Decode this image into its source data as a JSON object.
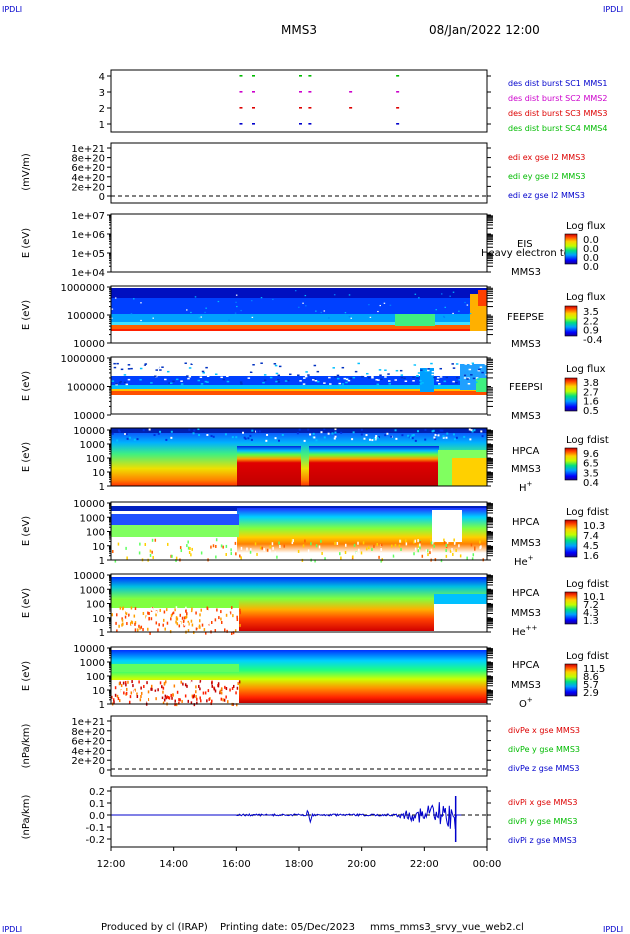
{
  "header": {
    "corner_tl": "IPDLI",
    "corner_tr": "IPDLI",
    "title": "MMS3",
    "datetime": "08/Jan/2022 12:00"
  },
  "footer": {
    "produced_by": "Produced by cl (IRAP)",
    "printing_date": "Printing date: 05/Dec/2023",
    "filename": "mms_mms3_srvy_vue_web2.cl",
    "corner_bl": "IPDLI",
    "corner_br": "IPDLI"
  },
  "colors": {
    "mms1": "#0000cc",
    "mms2": "#cc00cc",
    "mms3": "#dd0000",
    "mms4": "#00bb00",
    "frame": "#000000"
  },
  "chart_data": {
    "type": "heatmap",
    "x_axis": {
      "ticks": [
        "12:00",
        "14:00",
        "16:00",
        "18:00",
        "20:00",
        "22:00",
        "00:00"
      ],
      "range_hours": [
        12,
        24
      ]
    },
    "panels": [
      {
        "id": "burst",
        "type": "scatter",
        "yticks": [
          "4",
          "3",
          "2",
          "1"
        ],
        "ylim": [
          0.5,
          4.5
        ],
        "legend": [
          {
            "text": "des dist burst SC1 MMS1",
            "color": "#0000cc"
          },
          {
            "text": "des dist burst SC2 MMS2",
            "color": "#cc00cc"
          },
          {
            "text": "des dist burst SC3 MMS3",
            "color": "#dd0000"
          },
          {
            "text": "des dist burst SC4 MMS4",
            "color": "#00bb00"
          }
        ],
        "burst_hours": [
          16.1,
          16.5,
          18.0,
          18.3,
          19.6,
          21.1
        ]
      },
      {
        "id": "edi",
        "type": "line",
        "ylabel": "(mV/m)",
        "yticks": [
          "1e+21",
          "8e+20",
          "6e+20",
          "4e+20",
          "2e+20",
          "0"
        ],
        "ylim": [
          0,
          1e+21
        ],
        "legend": [
          {
            "text": "edi ex gse l2 MMS3",
            "color": "#dd0000"
          },
          {
            "text": "edi ey gse l2 MMS3",
            "color": "#00bb00"
          },
          {
            "text": "edi ez gse l2 MMS3",
            "color": "#0000cc"
          }
        ]
      },
      {
        "id": "eis",
        "type": "heatmap",
        "ylabel": "E (eV)",
        "yticks": [
          "1e+07",
          "1e+06",
          "1e+05",
          "1e+04"
        ],
        "ylim": [
          10000.0,
          10000000.0
        ],
        "log_y": true,
        "instrument": "EIS",
        "spacecraft": "MMS3",
        "overlay_text": "Heavy electron to",
        "cbar_title": "Log flux",
        "cbar_ticks": [
          "0.0",
          "0.0",
          "0.0",
          "0.0"
        ]
      },
      {
        "id": "feepse",
        "type": "heatmap",
        "ylabel": "E (eV)",
        "yticks": [
          "1000000",
          "100000",
          "10000"
        ],
        "ylim": [
          10000.0,
          1000000.0
        ],
        "log_y": true,
        "instrument": "FEEPSE",
        "spacecraft": "MMS3",
        "cbar_title": "Log flux",
        "cbar_ticks": [
          "3.5",
          "2.2",
          "0.9",
          "-0.4"
        ]
      },
      {
        "id": "feepsi",
        "type": "heatmap",
        "ylabel": "E (eV)",
        "yticks": [
          "1000000",
          "100000",
          "10000"
        ],
        "ylim": [
          10000.0,
          1000000.0
        ],
        "log_y": true,
        "instrument": "FEEPSI",
        "spacecraft": "MMS3",
        "cbar_title": "Log flux",
        "cbar_ticks": [
          "3.8",
          "2.7",
          "1.6",
          "0.5"
        ]
      },
      {
        "id": "hpca_h",
        "type": "heatmap",
        "ylabel": "E (eV)",
        "yticks": [
          "10000",
          "1000",
          "100",
          "10",
          "1"
        ],
        "ylim": [
          1,
          10000.0
        ],
        "log_y": true,
        "instrument": "HPCA",
        "spacecraft": "MMS3",
        "species": "H",
        "species_sup": "+",
        "cbar_title": "Log fdist",
        "cbar_ticks": [
          "9.6",
          "6.5",
          "3.5",
          "0.4"
        ]
      },
      {
        "id": "hpca_he",
        "type": "heatmap",
        "ylabel": "E (eV)",
        "yticks": [
          "10000",
          "1000",
          "100",
          "10",
          "1"
        ],
        "ylim": [
          1,
          10000.0
        ],
        "log_y": true,
        "instrument": "HPCA",
        "spacecraft": "MMS3",
        "species": "He",
        "species_sup": "+",
        "cbar_title": "Log fdist",
        "cbar_ticks": [
          "10.3",
          "7.4",
          "4.5",
          "1.6"
        ]
      },
      {
        "id": "hpca_hepp",
        "type": "heatmap",
        "ylabel": "E (eV)",
        "yticks": [
          "10000",
          "1000",
          "100",
          "10",
          "1"
        ],
        "ylim": [
          1,
          10000.0
        ],
        "log_y": true,
        "instrument": "HPCA",
        "spacecraft": "MMS3",
        "species": "He",
        "species_sup": "++",
        "cbar_title": "Log fdist",
        "cbar_ticks": [
          "10.1",
          "7.2",
          "4.3",
          "1.3"
        ]
      },
      {
        "id": "hpca_o",
        "type": "heatmap",
        "ylabel": "E (eV)",
        "yticks": [
          "10000",
          "1000",
          "100",
          "10",
          "1"
        ],
        "ylim": [
          1,
          10000.0
        ],
        "log_y": true,
        "instrument": "HPCA",
        "spacecraft": "MMS3",
        "species": "O",
        "species_sup": "+",
        "cbar_title": "Log fdist",
        "cbar_ticks": [
          "11.5",
          "8.6",
          "5.7",
          "2.9"
        ]
      },
      {
        "id": "divpe",
        "type": "line",
        "ylabel": "(nPa/km)",
        "yticks": [
          "1e+21",
          "8e+20",
          "6e+20",
          "4e+20",
          "2e+20",
          "0"
        ],
        "ylim": [
          0,
          1e+21
        ],
        "legend": [
          {
            "text": "divPe x gse MMS3",
            "color": "#dd0000"
          },
          {
            "text": "divPe y gse MMS3",
            "color": "#00bb00"
          },
          {
            "text": "divPe z gse MMS3",
            "color": "#0000cc"
          }
        ]
      },
      {
        "id": "divpi",
        "type": "line",
        "ylabel": "(nPa/km)",
        "yticks": [
          "0.2",
          "0.1",
          "0.0",
          "-0.1",
          "-0.2"
        ],
        "ylim": [
          -0.3,
          0.25
        ],
        "legend": [
          {
            "text": "divPi x gse MMS3",
            "color": "#dd0000"
          },
          {
            "text": "divPi y gse MMS3",
            "color": "#00bb00"
          },
          {
            "text": "divPi z gse MMS3",
            "color": "#0000cc"
          }
        ]
      }
    ]
  }
}
